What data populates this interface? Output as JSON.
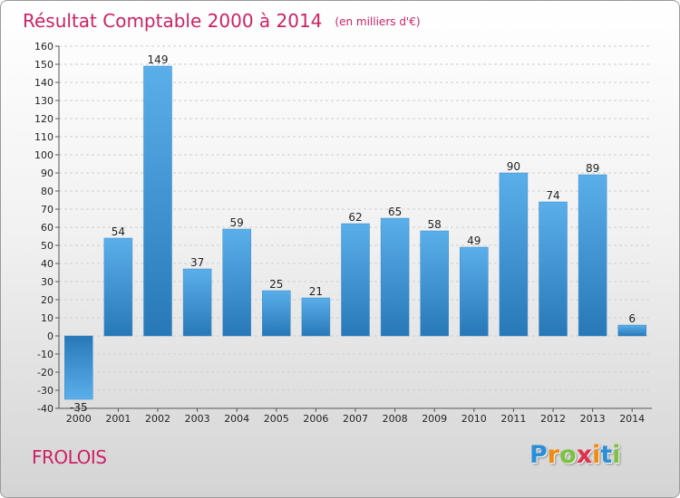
{
  "chart_data": {
    "type": "bar",
    "title": "Résultat Comptable 2000 à 2014",
    "subtitle": "(en milliers d'€)",
    "categories": [
      "2000",
      "2001",
      "2002",
      "2003",
      "2004",
      "2005",
      "2006",
      "2007",
      "2008",
      "2009",
      "2010",
      "2011",
      "2012",
      "2013",
      "2014"
    ],
    "values": [
      -35,
      54,
      149,
      37,
      59,
      25,
      21,
      62,
      65,
      58,
      49,
      90,
      74,
      89,
      6
    ],
    "ylim": [
      -40,
      160
    ],
    "yticks": [
      -40,
      -30,
      -20,
      -10,
      0,
      10,
      20,
      30,
      40,
      50,
      60,
      70,
      80,
      90,
      100,
      110,
      120,
      130,
      140,
      150,
      160
    ],
    "grid": true,
    "xlabel": "",
    "ylabel": ""
  },
  "commune": "FROLOIS",
  "brand": {
    "letters": [
      "P",
      "r",
      "o",
      "x",
      "i",
      "t",
      "i"
    ],
    "colors": [
      "#2a8fd8",
      "#f08a10",
      "#7cc242",
      "#e0304a",
      "#f08a10",
      "#2a8fd8",
      "#7cc242"
    ]
  },
  "colors": {
    "title": "#cc2266",
    "bar_light": "#5aafea",
    "bar_dark": "#2878b8",
    "grid": "#cfcfcf"
  }
}
